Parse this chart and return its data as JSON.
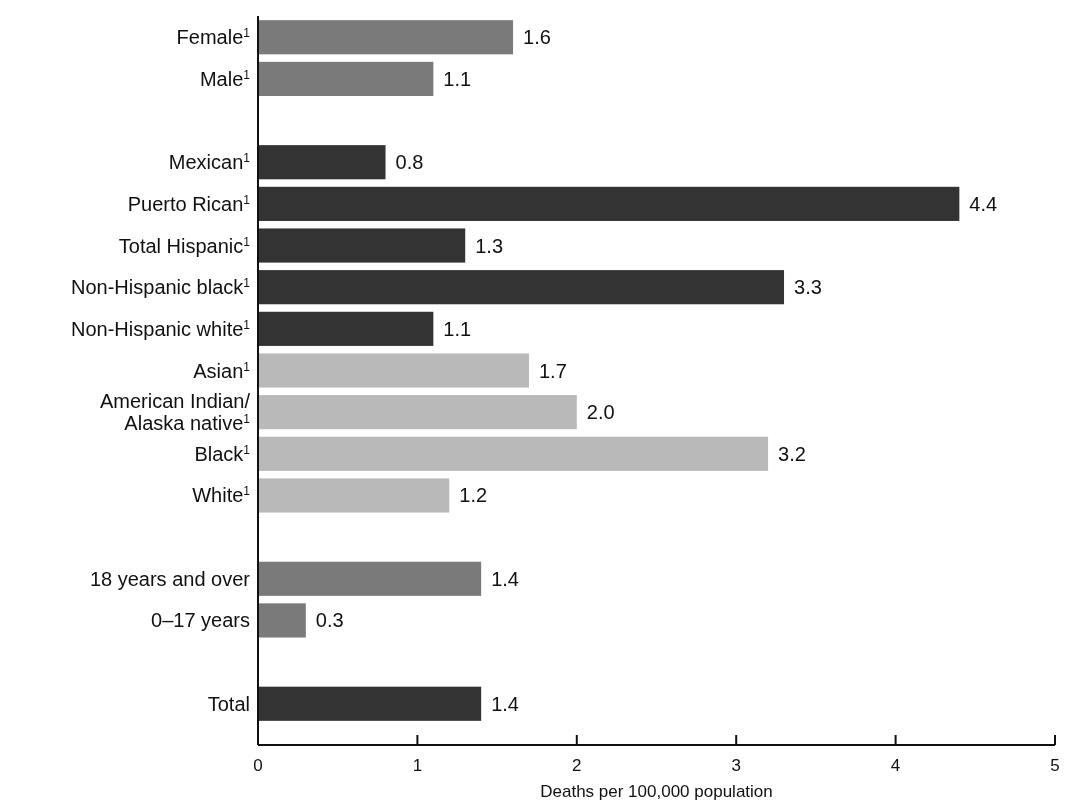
{
  "chart_data": {
    "type": "bar",
    "orientation": "horizontal",
    "xlabel": "Deaths per 100,000 population",
    "categories": [
      "Female$^{1}$",
      "Male$^{1}$",
      null,
      "Mexican$^{1}$",
      "Puerto Rican$^{1}$",
      "Total Hispanic$^{1}$",
      "Non-Hispanic black$^{1}$",
      "Non-Hispanic white$^{1}$",
      "Asian$^{1}$",
      "American Indian/\nAlaska native$^{1}$",
      "Black$^{1}$",
      "White$^{1}$",
      null,
      "18 years and over",
      "0–17 years",
      null,
      "Total"
    ],
    "values": [
      1.6,
      1.1,
      null,
      0.8,
      4.4,
      1.3,
      3.3,
      1.1,
      1.7,
      2.0,
      3.2,
      1.2,
      null,
      1.4,
      0.3,
      null,
      1.4
    ],
    "value_labels": [
      "1.6",
      "1.1",
      null,
      "0.8",
      "4.4",
      "1.3",
      "3.3",
      "1.1",
      "1.7",
      "2.0",
      "3.2",
      "1.2",
      null,
      "1.4",
      "0.3",
      null,
      "1.4"
    ],
    "colors": [
      "#7a7a7a",
      "#7a7a7a",
      null,
      "#333333",
      "#333333",
      "#333333",
      "#333333",
      "#333333",
      "#b9b9b9",
      "#b9b9b9",
      "#b9b9b9",
      "#b9b9b9",
      null,
      "#7a7a7a",
      "#7a7a7a",
      null,
      "#333333"
    ],
    "xlim": [
      0,
      5
    ],
    "xticks": [
      0,
      1,
      2,
      3,
      4,
      5
    ],
    "grid": false
  }
}
